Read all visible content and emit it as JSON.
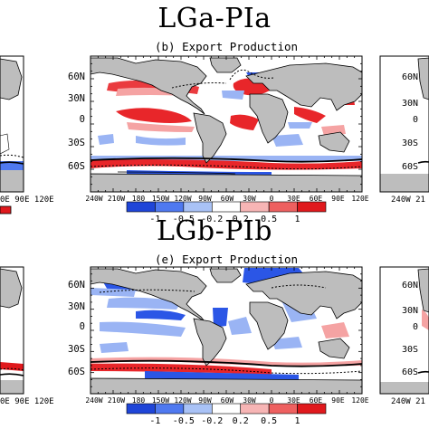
{
  "figure": {
    "top_title": "LGa-PIa",
    "bottom_title": "LGb-PIb",
    "top_subtitle": "(b) Export Production",
    "bottom_subtitle": "(e) Export Production"
  },
  "map_axes": {
    "lat_labels": [
      "60N",
      "30N",
      "0",
      "30S",
      "60S"
    ],
    "lon_labels": [
      "240W",
      "210W",
      "180",
      "150W",
      "120W",
      "90W",
      "60W",
      "30W",
      "0",
      "30E",
      "60E",
      "90E",
      "120E"
    ],
    "left_partial_lon_labels": [
      "0E",
      "90E",
      "120E"
    ],
    "right_partial_lon_labels": [
      "240W",
      "21"
    ],
    "right_partial_lat_labels": [
      "60N",
      "30N",
      "0",
      "30S",
      "60S"
    ]
  },
  "colorbar": {
    "tick_labels": [
      "-1",
      "-0.5",
      "-0.2",
      "0.2",
      "0.5",
      "1"
    ],
    "colors": [
      "#1f45d8",
      "#4f79f0",
      "#a9c2f6",
      "#ffffff",
      "#f7b5b5",
      "#ee6060",
      "#e0191d"
    ]
  },
  "colors": {
    "land": "#bdbdbd",
    "negative": "#2b56e6",
    "negative_light": "#9ab4f4",
    "positive": "#e8262a",
    "positive_light": "#f5a3a3"
  }
}
